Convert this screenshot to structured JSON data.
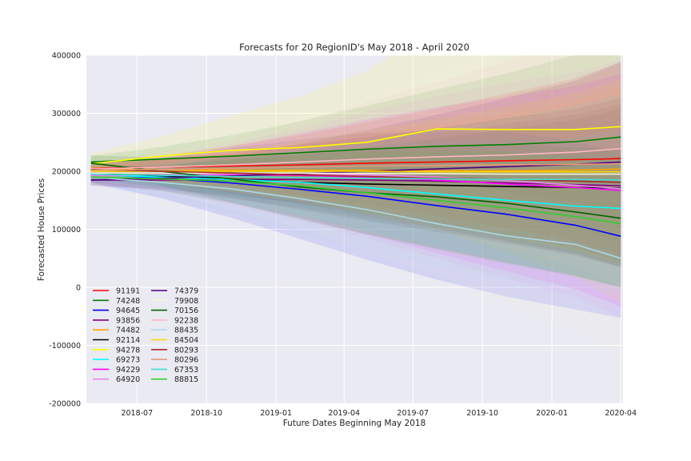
{
  "chart_data": {
    "type": "line",
    "title": "Forecasts for 20 RegionID's May 2018 - April 2020",
    "xlabel": "Future Dates Beginning May 2018",
    "ylabel": "Forecasted House Prices",
    "ylim": [
      -200000,
      400000
    ],
    "xlim": [
      "2018-04-25",
      "2020-04-04"
    ],
    "grid": true,
    "legend_position": "lower-left",
    "legend_columns": 2,
    "x_ticks": [
      "2018-07",
      "2018-10",
      "2019-01",
      "2019-04",
      "2019-07",
      "2019-10",
      "2020-01",
      "2020-04"
    ],
    "y_ticks": [
      -200000,
      -100000,
      0,
      100000,
      200000,
      300000,
      400000
    ],
    "x": [
      "2018-05-01",
      "2018-08-01",
      "2018-11-01",
      "2019-02-01",
      "2019-05-01",
      "2019-08-01",
      "2019-11-01",
      "2020-02-01",
      "2020-04-01"
    ],
    "series": [
      {
        "name": "91191",
        "color": "#ff0000",
        "values": [
          205000,
          207000,
          209000,
          211000,
          214000,
          216000,
          218000,
          220000,
          222000
        ],
        "band": [
          0.05,
          0.75
        ]
      },
      {
        "name": "74248",
        "color": "#008000",
        "values": [
          216000,
          221000,
          226000,
          232000,
          238000,
          243000,
          246000,
          251000,
          259000
        ],
        "band": [
          0.05,
          0.7
        ]
      },
      {
        "name": "94645",
        "color": "#0000ff",
        "values": [
          196000,
          188000,
          180000,
          169000,
          157000,
          141000,
          126000,
          107000,
          88000
        ],
        "band": [
          0.08,
          1.6
        ]
      },
      {
        "name": "93856",
        "color": "#800080",
        "values": [
          185000,
          185000,
          186000,
          186000,
          185000,
          183000,
          180000,
          177000,
          175000
        ],
        "band": [
          0.05,
          0.8
        ]
      },
      {
        "name": "74482",
        "color": "#ffa500",
        "values": [
          205000,
          203000,
          202000,
          202000,
          202000,
          201000,
          201000,
          202000,
          204000
        ],
        "band": [
          0.05,
          0.7
        ]
      },
      {
        "name": "92114",
        "color": "#000000",
        "values": [
          196000,
          192000,
          187000,
          181000,
          178000,
          176000,
          174000,
          172000,
          171000
        ],
        "band": [
          0.05,
          0.8
        ]
      },
      {
        "name": "94278",
        "color": "#ffff00",
        "values": [
          213000,
          226000,
          236000,
          241000,
          250000,
          273000,
          272000,
          272000,
          277000
        ],
        "band": [
          0.08,
          1.1
        ]
      },
      {
        "name": "69273",
        "color": "#00ffff",
        "values": [
          194000,
          190000,
          186000,
          181000,
          172000,
          161000,
          150000,
          140000,
          136000
        ],
        "band": [
          0.05,
          1.0
        ]
      },
      {
        "name": "94229",
        "color": "#ff00ff",
        "values": [
          193000,
          194000,
          194000,
          193000,
          190000,
          185000,
          178000,
          172000,
          167000
        ],
        "band": [
          0.06,
          1.2
        ]
      },
      {
        "name": "64920",
        "color": "#ee82ee",
        "values": [
          193000,
          194000,
          195000,
          195000,
          194000,
          190000,
          184000,
          176000,
          170000
        ],
        "band": [
          0.06,
          1.3
        ]
      },
      {
        "name": "74379",
        "color": "#4b0082",
        "values": [
          185000,
          188000,
          192000,
          196000,
          200000,
          204000,
          208000,
          212000,
          216000
        ],
        "band": [
          0.05,
          0.8
        ]
      },
      {
        "name": "79908",
        "color": "#f5f5dc",
        "values": [
          197000,
          197000,
          197000,
          197000,
          196000,
          196000,
          195000,
          195000,
          195000
        ],
        "band": [
          0.06,
          1.6
        ]
      },
      {
        "name": "70156",
        "color": "#006400",
        "values": [
          214000,
          200000,
          187000,
          173000,
          163000,
          156000,
          145000,
          130000,
          119000
        ],
        "band": [
          0.06,
          1.0
        ]
      },
      {
        "name": "92238",
        "color": "#ffb6c1",
        "values": [
          204000,
          207000,
          211000,
          216000,
          221000,
          225000,
          228000,
          233000,
          239000
        ],
        "band": [
          0.06,
          1.0
        ]
      },
      {
        "name": "88435",
        "color": "#add8e6",
        "values": [
          190000,
          181000,
          170000,
          153000,
          134000,
          110000,
          89000,
          74000,
          50000
        ],
        "band": [
          0.07,
          1.2
        ]
      },
      {
        "name": "84504",
        "color": "#ffd700",
        "values": [
          200000,
          200000,
          200000,
          200000,
          200000,
          199000,
          199000,
          199000,
          199000
        ],
        "band": [
          0.05,
          0.8
        ]
      },
      {
        "name": "80293",
        "color": "#a52a2a",
        "values": [
          203000,
          200000,
          197000,
          194000,
          191000,
          188000,
          186000,
          183000,
          181000
        ],
        "band": [
          0.05,
          0.8
        ]
      },
      {
        "name": "80296",
        "color": "#e9967a",
        "values": [
          202000,
          203000,
          205000,
          207000,
          209000,
          210000,
          211000,
          212000,
          213000
        ],
        "band": [
          0.05,
          0.8
        ]
      },
      {
        "name": "67353",
        "color": "#40e0d0",
        "values": [
          195000,
          193000,
          191000,
          189000,
          188000,
          187000,
          186000,
          186000,
          185000
        ],
        "band": [
          0.05,
          0.8
        ]
      },
      {
        "name": "88815",
        "color": "#32cd32",
        "values": [
          190000,
          187000,
          183000,
          175000,
          163000,
          150000,
          137000,
          122000,
          110000
        ],
        "band": [
          0.05,
          1.0
        ]
      }
    ]
  }
}
